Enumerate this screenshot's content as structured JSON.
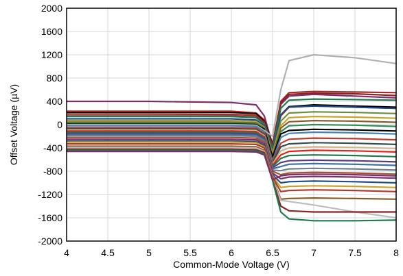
{
  "chart_data": {
    "type": "line",
    "xlabel": "Common-Mode Voltage (V)",
    "ylabel": "Offset Voltage (µV)",
    "xlim": [
      4,
      8
    ],
    "ylim": [
      -2000,
      2000
    ],
    "x_ticks": [
      4,
      4.5,
      5,
      5.5,
      6,
      6.5,
      7,
      7.5,
      8
    ],
    "x_tick_labels": [
      "4",
      "4.5",
      "5",
      "5.5",
      "6",
      "6.5",
      "7",
      "7.5",
      "8"
    ],
    "y_ticks": [
      -2000,
      -1600,
      -1200,
      -800,
      -400,
      0,
      400,
      800,
      1200,
      1600,
      2000
    ],
    "y_tick_labels": [
      "-2000",
      "-1600",
      "-1200",
      "-800",
      "-400",
      "0",
      "400",
      "800",
      "1200",
      "1600",
      "2000"
    ],
    "grid": true,
    "x": [
      4,
      5,
      6,
      6.3,
      6.4,
      6.5,
      6.6,
      6.7,
      7,
      7.5,
      8
    ],
    "series": [
      {
        "color": "#7B2D6E",
        "values": [
          400,
          400,
          380,
          340,
          150,
          -350,
          350,
          490,
          520,
          490,
          460
        ]
      },
      {
        "color": "#E32119",
        "values": [
          230,
          230,
          230,
          200,
          80,
          -380,
          150,
          300,
          320,
          300,
          280
        ]
      },
      {
        "color": "#000000",
        "values": [
          210,
          210,
          210,
          190,
          60,
          -330,
          170,
          310,
          340,
          320,
          300
        ]
      },
      {
        "color": "#A52A2A",
        "values": [
          180,
          180,
          175,
          160,
          40,
          -360,
          400,
          550,
          570,
          560,
          550
        ]
      },
      {
        "color": "#8B2323",
        "values": [
          150,
          150,
          150,
          130,
          20,
          -340,
          380,
          520,
          540,
          530,
          500
        ]
      },
      {
        "color": "#1F7A4D",
        "values": [
          140,
          140,
          140,
          120,
          10,
          -420,
          280,
          420,
          440,
          430,
          420
        ]
      },
      {
        "color": "#1C4E8A",
        "values": [
          100,
          100,
          100,
          80,
          -20,
          -460,
          170,
          300,
          320,
          300,
          280
        ]
      },
      {
        "color": "#6E8B3D",
        "values": [
          70,
          70,
          70,
          55,
          -40,
          -480,
          60,
          200,
          220,
          210,
          190
        ]
      },
      {
        "color": "#C9A227",
        "values": [
          60,
          60,
          60,
          50,
          -50,
          -520,
          -20,
          120,
          140,
          130,
          110
        ]
      },
      {
        "color": "#8B5A2B",
        "values": [
          40,
          40,
          40,
          30,
          -60,
          -540,
          -60,
          50,
          70,
          60,
          40
        ]
      },
      {
        "color": "#2E8B57",
        "values": [
          30,
          30,
          30,
          20,
          -70,
          -580,
          -120,
          -20,
          0,
          -10,
          -30
        ]
      },
      {
        "color": "#000000",
        "values": [
          10,
          10,
          10,
          0,
          -80,
          -560,
          -160,
          -100,
          -80,
          -90,
          -110
        ]
      },
      {
        "color": "#B0B0B0",
        "values": [
          0,
          0,
          0,
          -10,
          -100,
          -200,
          600,
          1100,
          1200,
          1150,
          1050
        ]
      },
      {
        "color": "#4682B4",
        "values": [
          -20,
          -20,
          -20,
          -30,
          -120,
          -620,
          -220,
          -150,
          -130,
          -140,
          -160
        ]
      },
      {
        "color": "#C0392B",
        "values": [
          -50,
          -50,
          -50,
          -60,
          -150,
          -640,
          -320,
          -250,
          -230,
          -240,
          -260
        ]
      },
      {
        "color": "#2F4F4F",
        "values": [
          -70,
          -70,
          -70,
          -80,
          -170,
          -660,
          -380,
          -330,
          -310,
          -320,
          -340
        ]
      },
      {
        "color": "#D2B48C",
        "values": [
          -90,
          -90,
          -90,
          -100,
          -190,
          -680,
          -450,
          -400,
          -380,
          -390,
          -410
        ]
      },
      {
        "color": "#E32119",
        "values": [
          -110,
          -110,
          -110,
          -120,
          -210,
          -700,
          -520,
          -460,
          -440,
          -450,
          -470
        ]
      },
      {
        "color": "#1F7A4D",
        "values": [
          -130,
          -130,
          -130,
          -140,
          -230,
          -720,
          -580,
          -530,
          -520,
          -530,
          -550
        ]
      },
      {
        "color": "#5B3A82",
        "values": [
          -150,
          -150,
          -150,
          -160,
          -250,
          -740,
          -650,
          -620,
          -610,
          -620,
          -640
        ]
      },
      {
        "color": "#3C6E9F",
        "values": [
          -170,
          -170,
          -170,
          -180,
          -260,
          -760,
          -720,
          -680,
          -670,
          -680,
          -700
        ]
      },
      {
        "color": "#708090",
        "values": [
          -190,
          -190,
          -190,
          -200,
          -280,
          -780,
          -790,
          -760,
          -750,
          -760,
          -780
        ]
      },
      {
        "color": "#A0522D",
        "values": [
          -220,
          -220,
          -220,
          -230,
          -300,
          -800,
          -860,
          -830,
          -820,
          -830,
          -850
        ]
      },
      {
        "color": "#7B2D6E",
        "values": [
          -250,
          -250,
          -250,
          -260,
          -330,
          -830,
          -930,
          -900,
          -890,
          -900,
          -920
        ]
      },
      {
        "color": "#1C4E8A",
        "values": [
          -280,
          -280,
          -280,
          -290,
          -360,
          -860,
          -1000,
          -980,
          -970,
          -980,
          -1000
        ]
      },
      {
        "color": "#C9A227",
        "values": [
          -300,
          -300,
          -300,
          -310,
          -380,
          -880,
          -1080,
          -1060,
          -1050,
          -1060,
          -1080
        ]
      },
      {
        "color": "#B03A2E",
        "values": [
          -330,
          -330,
          -330,
          -340,
          -400,
          -900,
          -1150,
          -1130,
          -1120,
          -1130,
          -1150
        ]
      },
      {
        "color": "#8B5A2B",
        "values": [
          -370,
          -370,
          -370,
          -380,
          -440,
          -920,
          -1280,
          -1270,
          -1260,
          -1270,
          -1280
        ]
      },
      {
        "color": "#BDBDBD",
        "values": [
          -390,
          -390,
          -390,
          -400,
          -460,
          -940,
          -1300,
          -1320,
          -1380,
          -1500,
          -1600
        ]
      },
      {
        "color": "#8B2323",
        "values": [
          -420,
          -420,
          -420,
          -430,
          -480,
          -950,
          -1400,
          -1480,
          -1500,
          -1500,
          -1500
        ]
      },
      {
        "color": "#1F7A4D",
        "values": [
          -440,
          -440,
          -440,
          -450,
          -500,
          -960,
          -1500,
          -1620,
          -1650,
          -1650,
          -1640
        ]
      },
      {
        "color": "#7B2D6E",
        "values": [
          -460,
          -460,
          -460,
          -470,
          -520,
          -950,
          -880,
          -860,
          -850,
          -860,
          -880
        ]
      }
    ]
  }
}
